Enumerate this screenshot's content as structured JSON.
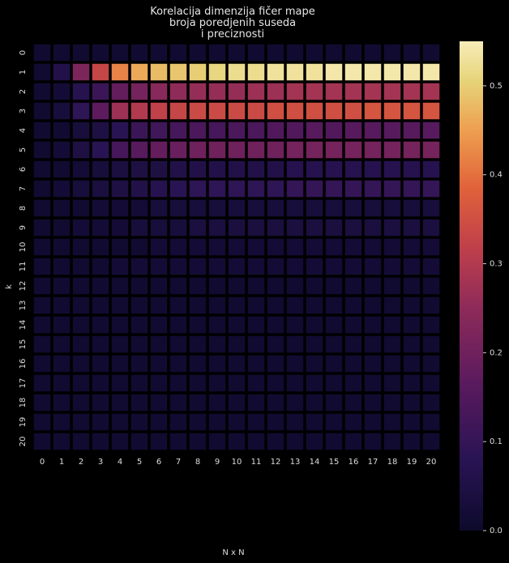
{
  "chart_data": {
    "type": "heatmap",
    "title_lines": [
      "Korelacija dimenzija fičer mape",
      "broja poredjenih suseda",
      "i preciznosti"
    ],
    "xlabel": "N x N",
    "ylabel": "k",
    "x": [
      0,
      1,
      2,
      3,
      4,
      5,
      6,
      7,
      8,
      9,
      10,
      11,
      12,
      13,
      14,
      15,
      16,
      17,
      18,
      19,
      20
    ],
    "y": [
      0,
      1,
      2,
      3,
      4,
      5,
      6,
      7,
      8,
      9,
      10,
      11,
      12,
      13,
      14,
      15,
      16,
      17,
      18,
      19,
      20
    ],
    "colorbar": {
      "range": [
        0.0,
        0.55
      ],
      "ticks": [
        0.0,
        0.1,
        0.2,
        0.3,
        0.4,
        0.5
      ],
      "tick_labels": [
        "0.0",
        "0.1",
        "0.2",
        "0.3",
        "0.4",
        "0.5"
      ],
      "colormap": "magma-like (dark navy → purple → red → orange → pale yellow)"
    },
    "values": [
      [
        0.01,
        0.01,
        0.01,
        0.01,
        0.01,
        0.01,
        0.01,
        0.01,
        0.01,
        0.01,
        0.01,
        0.01,
        0.01,
        0.01,
        0.01,
        0.01,
        0.01,
        0.01,
        0.01,
        0.01,
        0.01
      ],
      [
        0.01,
        0.06,
        0.22,
        0.33,
        0.42,
        0.46,
        0.48,
        0.49,
        0.5,
        0.51,
        0.52,
        0.52,
        0.53,
        0.53,
        0.53,
        0.54,
        0.54,
        0.54,
        0.54,
        0.54,
        0.54
      ],
      [
        0.01,
        0.02,
        0.07,
        0.11,
        0.18,
        0.21,
        0.24,
        0.25,
        0.26,
        0.26,
        0.26,
        0.27,
        0.27,
        0.28,
        0.28,
        0.28,
        0.28,
        0.28,
        0.28,
        0.28,
        0.28
      ],
      [
        0.01,
        0.03,
        0.09,
        0.17,
        0.27,
        0.3,
        0.32,
        0.33,
        0.34,
        0.34,
        0.34,
        0.34,
        0.35,
        0.35,
        0.35,
        0.35,
        0.35,
        0.36,
        0.36,
        0.36,
        0.36
      ],
      [
        0.01,
        0.01,
        0.03,
        0.05,
        0.08,
        0.11,
        0.12,
        0.13,
        0.14,
        0.13,
        0.14,
        0.14,
        0.15,
        0.15,
        0.16,
        0.15,
        0.16,
        0.16,
        0.16,
        0.16,
        0.16
      ],
      [
        0.01,
        0.02,
        0.05,
        0.08,
        0.13,
        0.16,
        0.18,
        0.19,
        0.2,
        0.2,
        0.2,
        0.2,
        0.2,
        0.21,
        0.21,
        0.21,
        0.21,
        0.21,
        0.21,
        0.21,
        0.21
      ],
      [
        0.01,
        0.01,
        0.02,
        0.03,
        0.04,
        0.05,
        0.05,
        0.06,
        0.06,
        0.06,
        0.06,
        0.06,
        0.06,
        0.07,
        0.07,
        0.07,
        0.07,
        0.07,
        0.07,
        0.07,
        0.07
      ],
      [
        0.01,
        0.02,
        0.03,
        0.04,
        0.05,
        0.06,
        0.07,
        0.08,
        0.09,
        0.09,
        0.09,
        0.09,
        0.09,
        0.1,
        0.1,
        0.1,
        0.1,
        0.1,
        0.1,
        0.1,
        0.1
      ],
      [
        0.01,
        0.01,
        0.01,
        0.02,
        0.02,
        0.02,
        0.03,
        0.03,
        0.03,
        0.03,
        0.03,
        0.03,
        0.03,
        0.03,
        0.03,
        0.03,
        0.03,
        0.03,
        0.03,
        0.03,
        0.03
      ],
      [
        0.01,
        0.01,
        0.02,
        0.02,
        0.02,
        0.03,
        0.03,
        0.03,
        0.04,
        0.04,
        0.04,
        0.04,
        0.04,
        0.04,
        0.04,
        0.04,
        0.04,
        0.04,
        0.04,
        0.04,
        0.04
      ],
      [
        0.01,
        0.01,
        0.01,
        0.01,
        0.01,
        0.01,
        0.02,
        0.02,
        0.02,
        0.02,
        0.02,
        0.02,
        0.02,
        0.02,
        0.02,
        0.02,
        0.02,
        0.02,
        0.02,
        0.02,
        0.02
      ],
      [
        0.01,
        0.01,
        0.01,
        0.01,
        0.02,
        0.02,
        0.02,
        0.02,
        0.02,
        0.02,
        0.02,
        0.02,
        0.02,
        0.02,
        0.02,
        0.02,
        0.02,
        0.02,
        0.02,
        0.02,
        0.02
      ],
      [
        0.01,
        0.01,
        0.01,
        0.01,
        0.01,
        0.01,
        0.01,
        0.01,
        0.01,
        0.01,
        0.01,
        0.01,
        0.01,
        0.01,
        0.01,
        0.01,
        0.01,
        0.01,
        0.01,
        0.01,
        0.01
      ],
      [
        0.01,
        0.01,
        0.01,
        0.01,
        0.01,
        0.01,
        0.01,
        0.01,
        0.01,
        0.01,
        0.01,
        0.01,
        0.01,
        0.01,
        0.01,
        0.01,
        0.01,
        0.01,
        0.01,
        0.01,
        0.01
      ],
      [
        0.01,
        0.01,
        0.01,
        0.01,
        0.01,
        0.01,
        0.01,
        0.01,
        0.01,
        0.01,
        0.01,
        0.01,
        0.01,
        0.01,
        0.01,
        0.01,
        0.01,
        0.01,
        0.01,
        0.01,
        0.01
      ],
      [
        0.01,
        0.01,
        0.01,
        0.01,
        0.01,
        0.01,
        0.01,
        0.01,
        0.01,
        0.01,
        0.01,
        0.01,
        0.01,
        0.01,
        0.01,
        0.01,
        0.01,
        0.01,
        0.01,
        0.01,
        0.01
      ],
      [
        0.01,
        0.01,
        0.01,
        0.01,
        0.01,
        0.01,
        0.01,
        0.01,
        0.01,
        0.01,
        0.01,
        0.01,
        0.01,
        0.01,
        0.01,
        0.01,
        0.01,
        0.01,
        0.01,
        0.01,
        0.01
      ],
      [
        0.01,
        0.01,
        0.01,
        0.01,
        0.01,
        0.01,
        0.01,
        0.01,
        0.01,
        0.01,
        0.01,
        0.01,
        0.01,
        0.01,
        0.01,
        0.01,
        0.01,
        0.01,
        0.01,
        0.01,
        0.01
      ],
      [
        0.01,
        0.01,
        0.01,
        0.01,
        0.01,
        0.01,
        0.01,
        0.01,
        0.01,
        0.01,
        0.01,
        0.01,
        0.01,
        0.01,
        0.01,
        0.01,
        0.01,
        0.01,
        0.01,
        0.01,
        0.01
      ],
      [
        0.01,
        0.01,
        0.01,
        0.01,
        0.01,
        0.01,
        0.01,
        0.01,
        0.01,
        0.01,
        0.01,
        0.01,
        0.01,
        0.01,
        0.01,
        0.01,
        0.01,
        0.01,
        0.01,
        0.01,
        0.01
      ],
      [
        0.01,
        0.01,
        0.01,
        0.01,
        0.01,
        0.01,
        0.01,
        0.01,
        0.01,
        0.01,
        0.01,
        0.01,
        0.01,
        0.01,
        0.01,
        0.01,
        0.01,
        0.01,
        0.01,
        0.01,
        0.01
      ]
    ],
    "colors": {
      "background": "#000000",
      "text": "#e6e6e6",
      "cell_border": "#000000"
    }
  }
}
